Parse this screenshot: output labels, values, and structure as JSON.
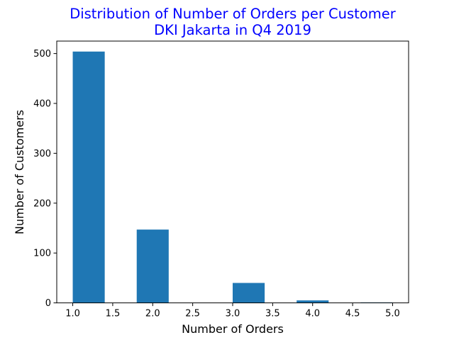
{
  "chart_data": {
    "type": "bar",
    "title_lines": [
      "Distribution of Number of Orders per Customer",
      "DKI Jakarta in Q4 2019"
    ],
    "xlabel": "Number of Orders",
    "ylabel": "Number of Customers",
    "xlim": [
      0.8,
      5.2
    ],
    "ylim": [
      0,
      525
    ],
    "x_ticks": [
      "1.0",
      "1.5",
      "2.0",
      "2.5",
      "3.0",
      "3.5",
      "4.0",
      "4.5",
      "5.0"
    ],
    "y_ticks": [
      "0",
      "100",
      "200",
      "300",
      "400",
      "500"
    ],
    "bars": [
      {
        "x_start": 1.0,
        "x_end": 1.4,
        "value": 504
      },
      {
        "x_start": 1.4,
        "x_end": 1.8,
        "value": 0
      },
      {
        "x_start": 1.8,
        "x_end": 2.2,
        "value": 147
      },
      {
        "x_start": 2.2,
        "x_end": 2.6,
        "value": 0
      },
      {
        "x_start": 2.6,
        "x_end": 3.0,
        "value": 0
      },
      {
        "x_start": 3.0,
        "x_end": 3.4,
        "value": 40
      },
      {
        "x_start": 3.4,
        "x_end": 3.8,
        "value": 0
      },
      {
        "x_start": 3.8,
        "x_end": 4.2,
        "value": 5
      },
      {
        "x_start": 4.2,
        "x_end": 4.6,
        "value": 0
      },
      {
        "x_start": 4.6,
        "x_end": 5.0,
        "value": 1
      }
    ],
    "bar_color": "#1f77b4",
    "title_color": "#0000ff",
    "grid": false,
    "legend": "none"
  }
}
